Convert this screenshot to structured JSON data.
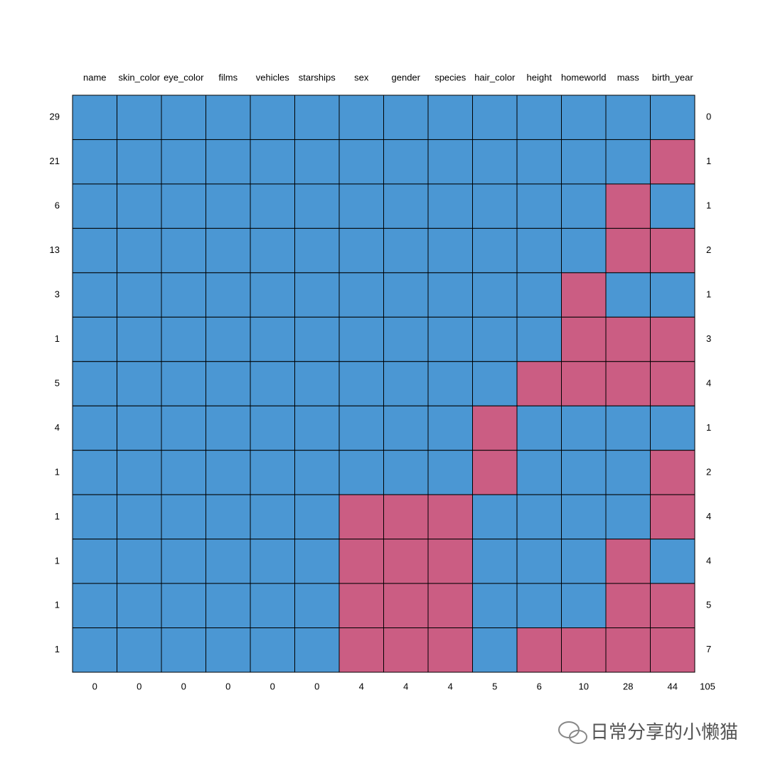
{
  "chart_data": {
    "type": "pattern",
    "columns": [
      "name",
      "skin_color",
      "eye_color",
      "films",
      "vehicles",
      "starships",
      "sex",
      "gender",
      "species",
      "hair_color",
      "height",
      "homeworld",
      "mass",
      "birth_year"
    ],
    "row_counts": [
      29,
      21,
      6,
      13,
      3,
      1,
      5,
      4,
      1,
      1,
      1,
      1,
      1
    ],
    "pattern": [
      [
        1,
        1,
        1,
        1,
        1,
        1,
        1,
        1,
        1,
        1,
        1,
        1,
        1,
        1
      ],
      [
        1,
        1,
        1,
        1,
        1,
        1,
        1,
        1,
        1,
        1,
        1,
        1,
        1,
        0
      ],
      [
        1,
        1,
        1,
        1,
        1,
        1,
        1,
        1,
        1,
        1,
        1,
        1,
        0,
        1
      ],
      [
        1,
        1,
        1,
        1,
        1,
        1,
        1,
        1,
        1,
        1,
        1,
        1,
        0,
        0
      ],
      [
        1,
        1,
        1,
        1,
        1,
        1,
        1,
        1,
        1,
        1,
        1,
        0,
        1,
        1
      ],
      [
        1,
        1,
        1,
        1,
        1,
        1,
        1,
        1,
        1,
        1,
        1,
        0,
        0,
        0
      ],
      [
        1,
        1,
        1,
        1,
        1,
        1,
        1,
        1,
        1,
        1,
        0,
        0,
        0,
        0
      ],
      [
        1,
        1,
        1,
        1,
        1,
        1,
        1,
        1,
        1,
        0,
        1,
        1,
        1,
        1
      ],
      [
        1,
        1,
        1,
        1,
        1,
        1,
        1,
        1,
        1,
        0,
        1,
        1,
        1,
        0
      ],
      [
        1,
        1,
        1,
        1,
        1,
        1,
        0,
        0,
        0,
        1,
        1,
        1,
        1,
        0
      ],
      [
        1,
        1,
        1,
        1,
        1,
        1,
        0,
        0,
        0,
        1,
        1,
        1,
        0,
        1
      ],
      [
        1,
        1,
        1,
        1,
        1,
        1,
        0,
        0,
        0,
        1,
        1,
        1,
        0,
        0
      ],
      [
        1,
        1,
        1,
        1,
        1,
        1,
        0,
        0,
        0,
        1,
        0,
        0,
        0,
        0
      ]
    ],
    "row_missing": [
      0,
      1,
      1,
      2,
      1,
      3,
      4,
      1,
      2,
      4,
      4,
      5,
      7
    ],
    "column_missing": [
      0,
      0,
      0,
      0,
      0,
      0,
      4,
      4,
      4,
      5,
      6,
      10,
      28,
      44
    ],
    "total_missing": 105,
    "colors": [
      "#cb5d83",
      "#4b97d3"
    ]
  },
  "watermark": "日常分享的小懒猫"
}
